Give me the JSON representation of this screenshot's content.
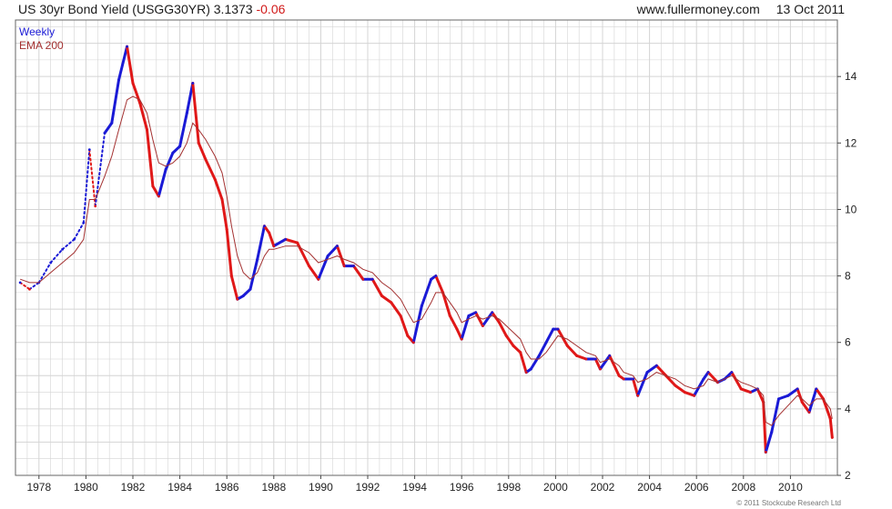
{
  "header": {
    "instrument": "US 30yr Bond Yield (USGG30YR)",
    "last": "3.1373",
    "change": "-0.06",
    "site": "www.fullermoney.com",
    "date": "13 Oct 2011"
  },
  "credit": "© 2011 Stockcube Research Ltd",
  "colors": {
    "up": "#1a1ad6",
    "down": "#e01818",
    "ema": "#a33030",
    "grid": "#d4d4d4"
  },
  "chart_data": {
    "type": "line",
    "title": "US 30yr Bond Yield (USGG30YR) 3.1373 -0.06",
    "xlabel": "",
    "ylabel": "",
    "xlim": [
      1977,
      2012
    ],
    "ylim": [
      2,
      15.7
    ],
    "x_ticks": [
      "1978",
      "1980",
      "1982",
      "1984",
      "1986",
      "1988",
      "1990",
      "1992",
      "1994",
      "1996",
      "1998",
      "2000",
      "2002",
      "2004",
      "2006",
      "2008",
      "2010"
    ],
    "y_ticks": [
      2,
      4,
      6,
      8,
      10,
      12,
      14
    ],
    "grid": true,
    "legend_position": "top-left",
    "series": [
      {
        "name": "Weekly",
        "style": "weekly-bars-blue-up-red-down",
        "x": [
          1977.2,
          1977.6,
          1978.0,
          1978.5,
          1979.0,
          1979.5,
          1979.9,
          1980.15,
          1980.4,
          1980.8,
          1981.1,
          1981.4,
          1981.75,
          1982.0,
          1982.3,
          1982.6,
          1982.85,
          1983.1,
          1983.4,
          1983.7,
          1984.0,
          1984.3,
          1984.55,
          1984.8,
          1985.1,
          1985.5,
          1985.8,
          1986.0,
          1986.2,
          1986.45,
          1986.7,
          1987.0,
          1987.3,
          1987.6,
          1987.8,
          1988.0,
          1988.5,
          1989.0,
          1989.5,
          1989.9,
          1990.3,
          1990.7,
          1991.0,
          1991.4,
          1991.8,
          1992.2,
          1992.6,
          1993.0,
          1993.4,
          1993.7,
          1993.95,
          1994.3,
          1994.7,
          1994.9,
          1995.2,
          1995.5,
          1995.8,
          1996.0,
          1996.3,
          1996.6,
          1996.9,
          1997.3,
          1997.6,
          1997.9,
          1998.2,
          1998.5,
          1998.75,
          1998.95,
          1999.3,
          1999.6,
          1999.9,
          2000.1,
          2000.5,
          2000.9,
          2001.3,
          2001.7,
          2001.9,
          2002.3,
          2002.7,
          2002.9,
          2003.3,
          2003.5,
          2003.9,
          2004.3,
          2004.7,
          2005.1,
          2005.5,
          2005.9,
          2006.3,
          2006.5,
          2006.9,
          2007.2,
          2007.5,
          2007.9,
          2008.3,
          2008.6,
          2008.85,
          2008.95,
          2009.2,
          2009.5,
          2009.9,
          2010.3,
          2010.5,
          2010.8,
          2011.1,
          2011.4,
          2011.7,
          2011.78
        ],
        "values": [
          7.8,
          7.6,
          7.8,
          8.4,
          8.8,
          9.1,
          9.6,
          11.8,
          10.1,
          12.3,
          12.6,
          13.9,
          14.9,
          13.8,
          13.2,
          12.4,
          10.7,
          10.4,
          11.2,
          11.7,
          11.9,
          12.9,
          13.8,
          12.0,
          11.5,
          10.9,
          10.3,
          9.4,
          8.0,
          7.3,
          7.4,
          7.6,
          8.5,
          9.5,
          9.3,
          8.9,
          9.1,
          9.0,
          8.3,
          7.9,
          8.6,
          8.9,
          8.3,
          8.3,
          7.9,
          7.9,
          7.4,
          7.2,
          6.8,
          6.2,
          6.0,
          7.1,
          7.9,
          8.0,
          7.5,
          6.8,
          6.4,
          6.1,
          6.8,
          6.9,
          6.5,
          6.9,
          6.6,
          6.2,
          5.9,
          5.7,
          5.1,
          5.2,
          5.6,
          6.0,
          6.4,
          6.4,
          5.9,
          5.6,
          5.5,
          5.5,
          5.2,
          5.6,
          5.0,
          4.9,
          4.9,
          4.4,
          5.1,
          5.3,
          5.0,
          4.7,
          4.5,
          4.4,
          4.9,
          5.1,
          4.8,
          4.9,
          5.1,
          4.6,
          4.5,
          4.6,
          4.2,
          2.7,
          3.3,
          4.3,
          4.4,
          4.6,
          4.2,
          3.9,
          4.6,
          4.3,
          3.7,
          3.14
        ]
      },
      {
        "name": "EMA 200",
        "x": [
          1977.2,
          1977.6,
          1978.0,
          1978.5,
          1979.0,
          1979.5,
          1979.9,
          1980.15,
          1980.4,
          1980.8,
          1981.1,
          1981.4,
          1981.75,
          1982.0,
          1982.3,
          1982.6,
          1982.85,
          1983.1,
          1983.4,
          1983.7,
          1984.0,
          1984.3,
          1984.55,
          1984.8,
          1985.1,
          1985.5,
          1985.8,
          1986.0,
          1986.2,
          1986.45,
          1986.7,
          1987.0,
          1987.3,
          1987.6,
          1987.8,
          1988.0,
          1988.5,
          1989.0,
          1989.5,
          1989.9,
          1990.3,
          1990.7,
          1991.0,
          1991.4,
          1991.8,
          1992.2,
          1992.6,
          1993.0,
          1993.4,
          1993.7,
          1993.95,
          1994.3,
          1994.7,
          1994.9,
          1995.2,
          1995.5,
          1995.8,
          1996.0,
          1996.3,
          1996.6,
          1996.9,
          1997.3,
          1997.6,
          1997.9,
          1998.2,
          1998.5,
          1998.75,
          1998.95,
          1999.3,
          1999.6,
          1999.9,
          2000.1,
          2000.5,
          2000.9,
          2001.3,
          2001.7,
          2001.9,
          2002.3,
          2002.7,
          2002.9,
          2003.3,
          2003.5,
          2003.9,
          2004.3,
          2004.7,
          2005.1,
          2005.5,
          2005.9,
          2006.3,
          2006.5,
          2006.9,
          2007.2,
          2007.5,
          2007.9,
          2008.3,
          2008.6,
          2008.85,
          2008.95,
          2009.2,
          2009.5,
          2009.9,
          2010.3,
          2010.5,
          2010.8,
          2011.1,
          2011.4,
          2011.7,
          2011.78
        ],
        "values": [
          7.9,
          7.8,
          7.8,
          8.1,
          8.4,
          8.7,
          9.1,
          10.3,
          10.3,
          11.0,
          11.6,
          12.4,
          13.3,
          13.4,
          13.3,
          12.9,
          12.1,
          11.4,
          11.3,
          11.4,
          11.6,
          12.0,
          12.6,
          12.4,
          12.1,
          11.6,
          11.1,
          10.4,
          9.5,
          8.6,
          8.1,
          7.9,
          8.1,
          8.6,
          8.8,
          8.8,
          8.9,
          8.9,
          8.7,
          8.4,
          8.5,
          8.6,
          8.5,
          8.4,
          8.2,
          8.1,
          7.8,
          7.6,
          7.3,
          6.9,
          6.6,
          6.7,
          7.2,
          7.5,
          7.5,
          7.2,
          6.9,
          6.6,
          6.7,
          6.8,
          6.7,
          6.8,
          6.7,
          6.5,
          6.3,
          6.1,
          5.7,
          5.5,
          5.5,
          5.7,
          6.0,
          6.2,
          6.1,
          5.9,
          5.7,
          5.6,
          5.4,
          5.5,
          5.3,
          5.1,
          5.0,
          4.8,
          4.9,
          5.1,
          5.0,
          4.9,
          4.7,
          4.6,
          4.7,
          4.9,
          4.8,
          4.9,
          5.0,
          4.8,
          4.7,
          4.6,
          4.4,
          3.6,
          3.5,
          3.8,
          4.1,
          4.4,
          4.3,
          4.1,
          4.3,
          4.3,
          4.0,
          3.7
        ]
      }
    ]
  }
}
